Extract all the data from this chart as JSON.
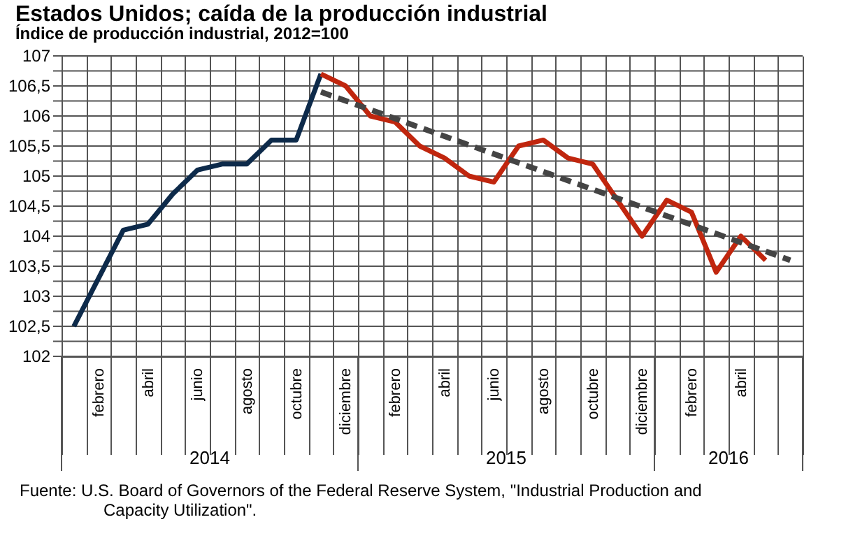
{
  "chart_data": {
    "type": "line",
    "title": "Estados Unidos; caída de la producción industrial",
    "subtitle": "Índice de producción industrial, 2012=100",
    "categories": [
      null,
      "febrero",
      null,
      "abril",
      null,
      "junio",
      null,
      "agosto",
      null,
      "octubre",
      null,
      "diciembre",
      null,
      "febrero",
      null,
      "abril",
      null,
      "junio",
      null,
      "agosto",
      null,
      "octubre",
      null,
      "diciembre",
      null,
      "febrero",
      null,
      "abril",
      null,
      null
    ],
    "series": [
      {
        "color": "#0d2a4a",
        "values": [
          102.5,
          103.3,
          104.1,
          104.2,
          104.7,
          105.1,
          105.2,
          105.2,
          105.6,
          105.6,
          106.7,
          null,
          null,
          null,
          null,
          null,
          null,
          null,
          null,
          null,
          null,
          null,
          null,
          null,
          null,
          null,
          null,
          null,
          null,
          null
        ]
      },
      {
        "color": "#c0260e",
        "values": [
          null,
          null,
          null,
          null,
          null,
          null,
          null,
          null,
          null,
          null,
          106.7,
          106.5,
          106.0,
          105.9,
          105.5,
          105.3,
          105.0,
          104.9,
          105.5,
          105.6,
          105.3,
          105.2,
          104.6,
          104.0,
          104.6,
          104.4,
          103.4,
          104.0,
          103.6,
          null
        ]
      },
      {
        "color": "#444444",
        "line_style": "dashed",
        "values": [
          null,
          null,
          null,
          null,
          null,
          null,
          null,
          null,
          null,
          null,
          106.4,
          null,
          null,
          null,
          null,
          null,
          null,
          null,
          null,
          null,
          null,
          null,
          null,
          null,
          null,
          null,
          null,
          null,
          null,
          103.6
        ]
      }
    ],
    "ylim": [
      102,
      107
    ],
    "yticks": [
      102,
      {
        "value": 102.25,
        "label": null
      },
      {
        "value": 102.5,
        "label": "102,5"
      },
      {
        "value": 102.75,
        "label": null
      },
      103,
      {
        "value": 103.25,
        "label": null
      },
      {
        "value": 103.5,
        "label": "103,5"
      },
      {
        "value": 103.75,
        "label": null
      },
      104,
      {
        "value": 104.25,
        "label": null
      },
      {
        "value": 104.5,
        "label": "104,5"
      },
      {
        "value": 104.75,
        "label": null
      },
      105,
      {
        "value": 105.25,
        "label": null
      },
      {
        "value": 105.5,
        "label": "105,5"
      },
      {
        "value": 105.75,
        "label": null
      },
      106,
      {
        "value": 106.25,
        "label": null
      },
      {
        "value": 106.5,
        "label": "106,5"
      },
      {
        "value": 106.75,
        "label": null
      },
      107
    ],
    "grid": true,
    "marker": "none",
    "line_style": "solid",
    "annotations": [
      "2014",
      "2015",
      "2016",
      "Fuente: U.S. Board of Governors of the Federal Reserve System, \"Industrial Production and Capacity Utilization\"."
    ]
  }
}
